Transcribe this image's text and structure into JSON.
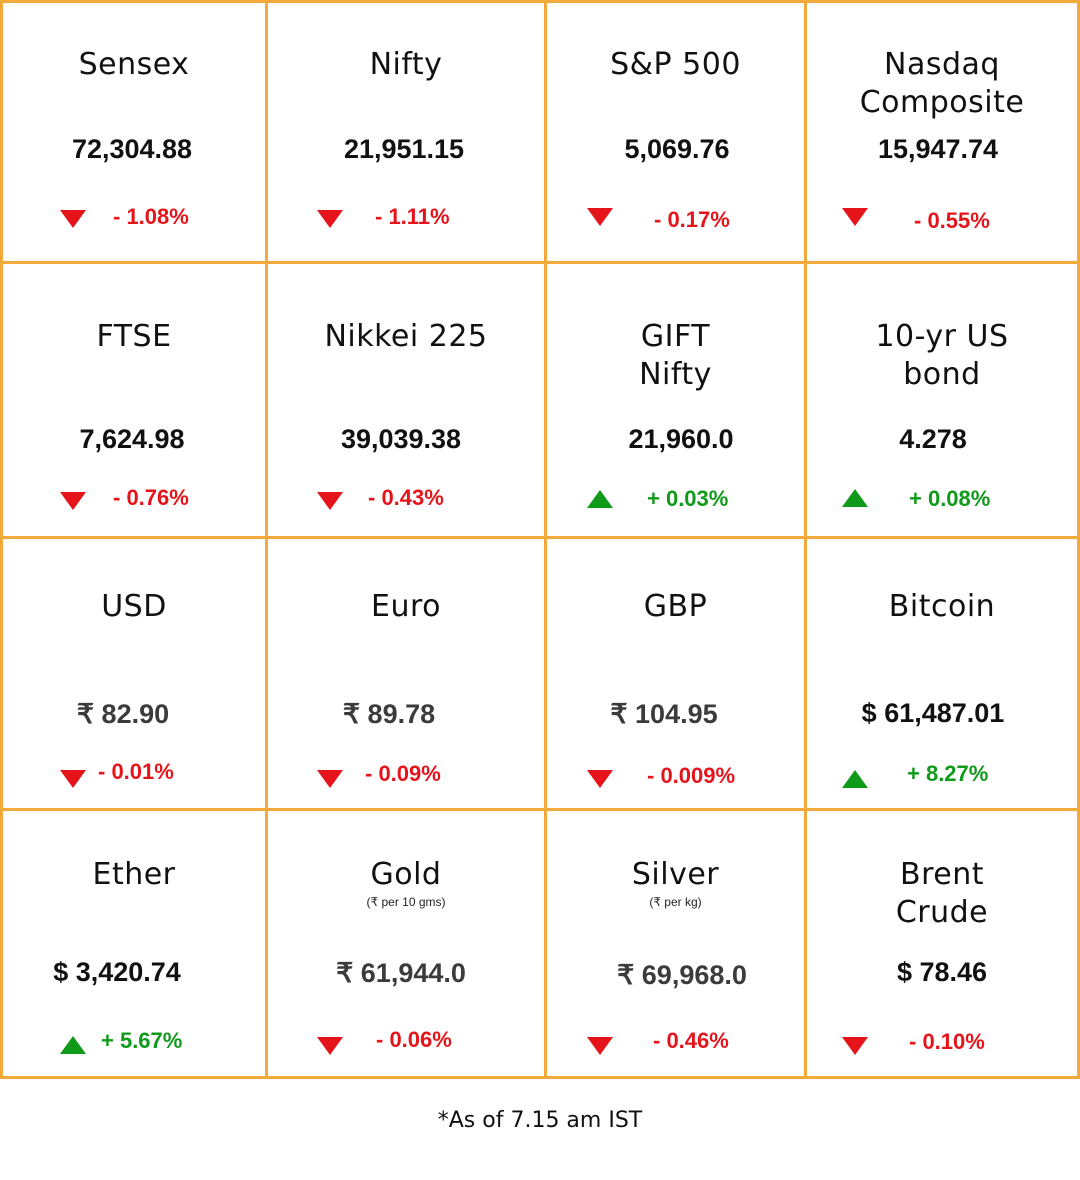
{
  "colors": {
    "border": "#f4a93b",
    "negative": "#e5141b",
    "positive": "#0f9a1a"
  },
  "cells": [
    {
      "title": "Sensex",
      "subtitle": "",
      "value": "72,304.88",
      "direction": "down",
      "change": "- 1.08%"
    },
    {
      "title": "Nifty",
      "subtitle": "",
      "value": "21,951.15",
      "direction": "down",
      "change": "- 1.11%"
    },
    {
      "title": "S&P 500",
      "subtitle": "",
      "value": "5,069.76",
      "direction": "down",
      "change": "- 0.17%"
    },
    {
      "title": "Nasdaq\nComposite",
      "subtitle": "",
      "value": "15,947.74",
      "direction": "down",
      "change": "- 0.55%"
    },
    {
      "title": "FTSE",
      "subtitle": "",
      "value": "7,624.98",
      "direction": "down",
      "change": "- 0.76%"
    },
    {
      "title": "Nikkei 225",
      "subtitle": "",
      "value": "39,039.38",
      "direction": "down",
      "change": "- 0.43%"
    },
    {
      "title": "GIFT\nNifty",
      "subtitle": "",
      "value": "21,960.0",
      "direction": "up",
      "change": "+ 0.03%"
    },
    {
      "title": "10-yr US\nbond",
      "subtitle": "",
      "value": "4.278",
      "direction": "up",
      "change": "+ 0.08%"
    },
    {
      "title": "USD",
      "subtitle": "",
      "value": "₹ 82.90",
      "direction": "down",
      "change": "- 0.01%"
    },
    {
      "title": "Euro",
      "subtitle": "",
      "value": "₹ 89.78",
      "direction": "down",
      "change": "- 0.09%"
    },
    {
      "title": "GBP",
      "subtitle": "",
      "value": "₹ 104.95",
      "direction": "down",
      "change": "- 0.009%"
    },
    {
      "title": "Bitcoin",
      "subtitle": "",
      "value": "$ 61,487.01",
      "direction": "up",
      "change": "+ 8.27%"
    },
    {
      "title": "Ether",
      "subtitle": "",
      "value": "$ 3,420.74",
      "direction": "up",
      "change": "+ 5.67%"
    },
    {
      "title": "Gold",
      "subtitle": "(₹ per 10 gms)",
      "value": "₹ 61,944.0",
      "direction": "down",
      "change": "- 0.06%"
    },
    {
      "title": "Silver",
      "subtitle": "(₹ per kg)",
      "value": "₹ 69,968.0",
      "direction": "down",
      "change": "- 0.46%"
    },
    {
      "title": "Brent\nCrude",
      "subtitle": "",
      "value": "$ 78.46",
      "direction": "down",
      "change": "- 0.10%"
    }
  ],
  "footnote": "*As of 7.15 am IST"
}
